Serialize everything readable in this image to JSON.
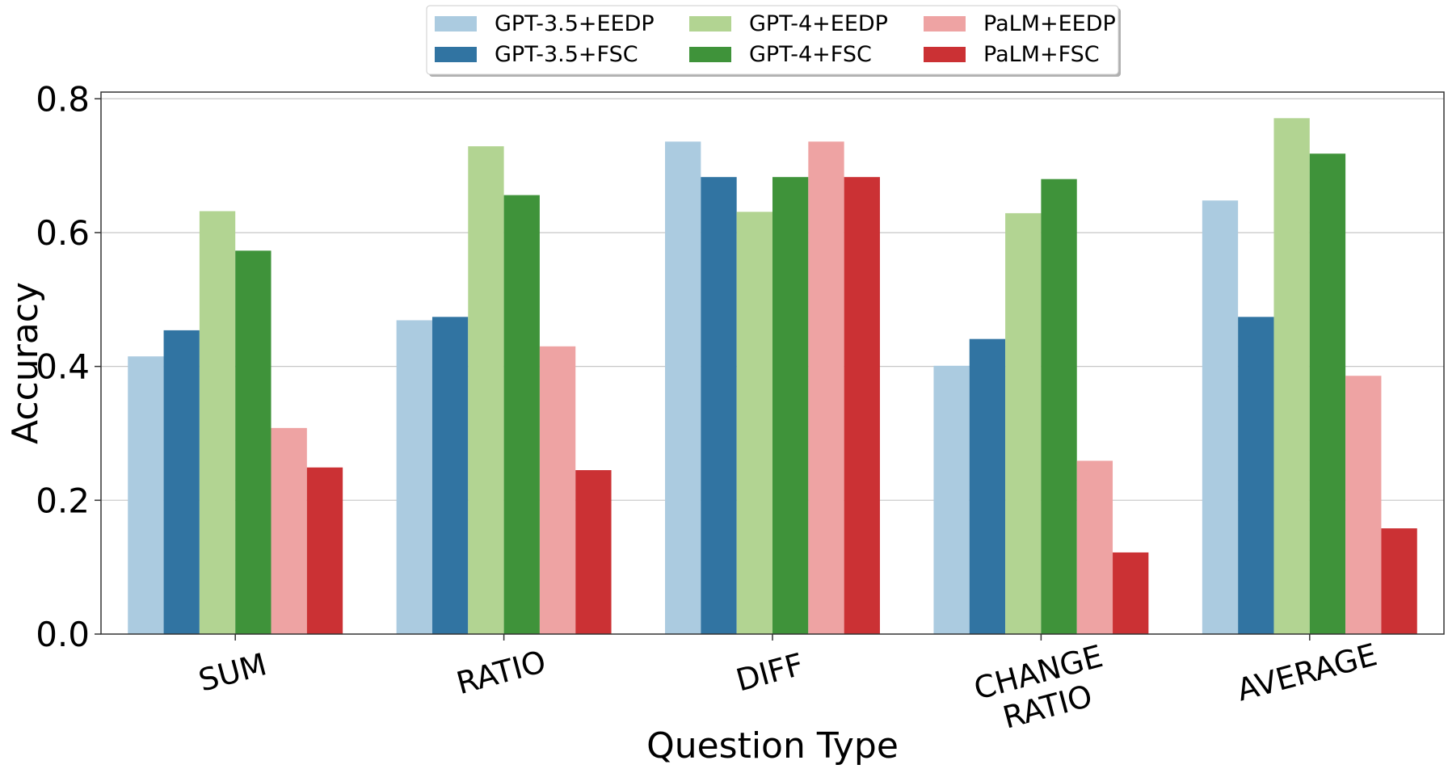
{
  "chart_data": {
    "type": "bar",
    "title": "",
    "xlabel": "Question Type",
    "ylabel": "Accuracy",
    "ylim": [
      0,
      0.81
    ],
    "yticks": [
      0.0,
      0.2,
      0.4,
      0.6,
      0.8
    ],
    "ytick_labels": [
      "0.0",
      "0.2",
      "0.4",
      "0.6",
      "0.8"
    ],
    "grid": "horizontal",
    "legend_position": "top-center",
    "categories": [
      {
        "label_lines": [
          "SUM"
        ]
      },
      {
        "label_lines": [
          "RATIO"
        ]
      },
      {
        "label_lines": [
          "DIFF"
        ]
      },
      {
        "label_lines": [
          "CHANGE",
          "RATIO"
        ]
      },
      {
        "label_lines": [
          "AVERAGE"
        ]
      }
    ],
    "series": [
      {
        "name": "GPT-3.5+EEDP",
        "color": "#abcbe0",
        "values": [
          0.415,
          0.469,
          0.736,
          0.401,
          0.648
        ]
      },
      {
        "name": "GPT-3.5+FSC",
        "color": "#3174a2",
        "values": [
          0.454,
          0.474,
          0.683,
          0.441,
          0.474
        ]
      },
      {
        "name": "GPT-4+EEDP",
        "color": "#b2d492",
        "values": [
          0.632,
          0.729,
          0.631,
          0.629,
          0.771
        ]
      },
      {
        "name": "GPT-4+FSC",
        "color": "#3f933a",
        "values": [
          0.573,
          0.656,
          0.683,
          0.68,
          0.718
        ]
      },
      {
        "name": "PaLM+EEDP",
        "color": "#eea3a3",
        "values": [
          0.308,
          0.43,
          0.736,
          0.259,
          0.386
        ]
      },
      {
        "name": "PaLM+FSC",
        "color": "#cb3134",
        "values": [
          0.249,
          0.245,
          0.683,
          0.122,
          0.158
        ]
      }
    ]
  }
}
